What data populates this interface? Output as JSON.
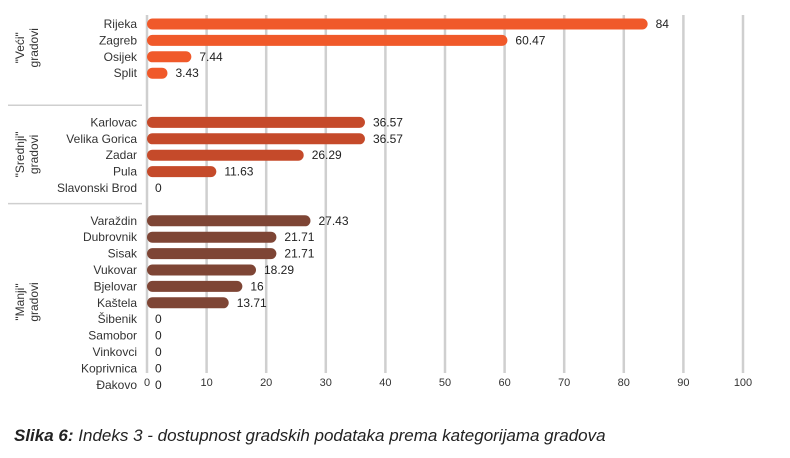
{
  "chart_data": {
    "type": "bar",
    "orientation": "horizontal",
    "xlim": [
      0,
      100
    ],
    "xticks": [
      "0",
      "10",
      "20",
      "30",
      "40",
      "50",
      "60",
      "70",
      "80",
      "90",
      "100"
    ],
    "grid": "vertical",
    "groups": [
      {
        "label": "\"Veći\" gradovi",
        "color": "#f0592a",
        "categories": [
          "Rijeka",
          "Zagreb",
          "Osijek",
          "Split"
        ],
        "values": [
          84,
          60.47,
          7.44,
          3.43
        ],
        "value_labels": [
          "84",
          "60.47",
          "7.44",
          "3.43"
        ]
      },
      {
        "label": "\"Srednji\" gradovi",
        "color": "#c54a2a",
        "categories": [
          "Karlovac",
          "Velika Gorica",
          "Zadar",
          "Pula",
          "Slavonski Brod"
        ],
        "values": [
          36.57,
          36.57,
          26.29,
          11.63,
          0
        ],
        "value_labels": [
          "36.57",
          "36.57",
          "26.29",
          "11.63",
          "0"
        ]
      },
      {
        "label": "\"Manji\" gradovi",
        "color": "#7e4535",
        "categories": [
          "Varaždin",
          "Dubrovnik",
          "Sisak",
          "Vukovar",
          "Bjelovar",
          "Kaštela",
          "Šibenik",
          "Samobor",
          "Vinkovci",
          "Koprivnica",
          "Đakovo"
        ],
        "values": [
          27.43,
          21.71,
          21.71,
          18.29,
          16,
          13.71,
          0,
          0,
          0,
          0,
          0
        ],
        "value_labels": [
          "27.43",
          "21.71",
          "21.71",
          "18.29",
          "16",
          "13.71",
          "0",
          "0",
          "0",
          "0",
          "0"
        ]
      }
    ]
  },
  "caption": {
    "prefix": "Slika 6:",
    "text": " Indeks  3 - dostupnost gradskih podataka prema kategorijama gradova"
  }
}
